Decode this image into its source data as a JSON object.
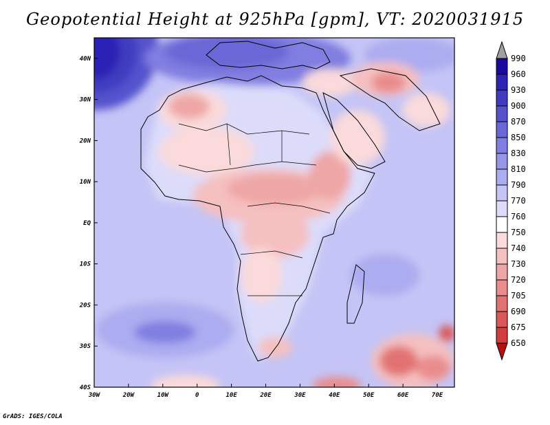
{
  "title": "Geopotential Height at 925hPa [gpm], VT: 2020031915",
  "map": {
    "lat_ticks": [
      "40N",
      "30N",
      "20N",
      "10N",
      "EQ",
      "10S",
      "20S",
      "30S",
      "40S"
    ],
    "lon_ticks": [
      "30W",
      "20W",
      "10W",
      "0",
      "10E",
      "20E",
      "30E",
      "40E",
      "50E",
      "60E",
      "70E"
    ],
    "lat_values": [
      40,
      30,
      20,
      10,
      0,
      -10,
      -20,
      -30,
      -40
    ],
    "lon_values": [
      -30,
      -20,
      -10,
      0,
      10,
      20,
      30,
      40,
      50,
      60,
      70
    ],
    "extent": {
      "lon_min": -30,
      "lon_max": 75,
      "lat_min": -40,
      "lat_max": 45
    }
  },
  "colorbar": {
    "levels": [
      "990",
      "960",
      "930",
      "900",
      "870",
      "850",
      "830",
      "810",
      "790",
      "770",
      "760",
      "750",
      "740",
      "730",
      "720",
      "705",
      "690",
      "675",
      "650"
    ],
    "colors": [
      "#1a0aa0",
      "#2c24b4",
      "#3f3cc0",
      "#5552cc",
      "#6a68d6",
      "#807ee0",
      "#9695e8",
      "#acacf0",
      "#c4c4f6",
      "#dcdcfa",
      "#ffffff",
      "#fadada",
      "#f5c0c0",
      "#efa6a6",
      "#e98c8c",
      "#e27272",
      "#da5858",
      "#d23e3e",
      "#c82424",
      "#b81010"
    ],
    "top_arrow_color": "#a0a0a0"
  },
  "credit": "GrADS: IGES/COLA"
}
